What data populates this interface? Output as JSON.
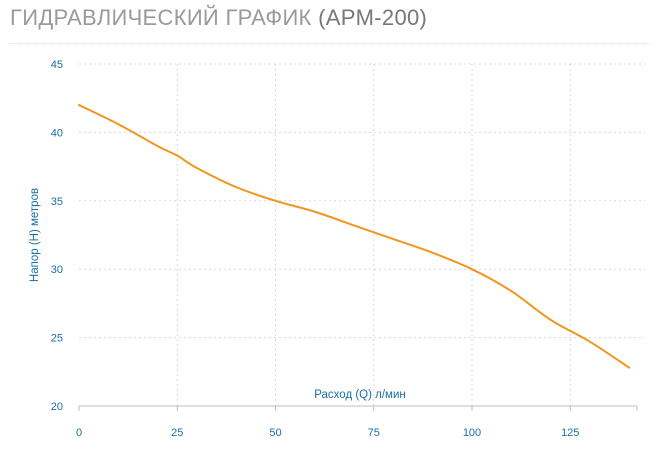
{
  "header": {
    "title_main": "ГИДРАВЛИЧЕСКИЙ ГРАФИК",
    "title_model": "(APM-200)"
  },
  "chart_data": {
    "type": "line",
    "xlabel": "Расход (Q) л/мин",
    "ylabel": "Напор (H) метров",
    "xlim": [
      0,
      140
    ],
    "ylim": [
      20,
      45
    ],
    "xticks": [
      0,
      25,
      50,
      75,
      100,
      125
    ],
    "yticks": [
      20,
      25,
      30,
      35,
      40,
      45
    ],
    "grid": true,
    "series": [
      {
        "color": "#f0961e",
        "x": [
          0,
          10,
          20,
          25,
          30,
          40,
          50,
          60,
          70,
          80,
          90,
          100,
          110,
          120,
          130,
          140
        ],
        "y": [
          42,
          40.6,
          39,
          38.3,
          37.4,
          36,
          35,
          34.2,
          33.2,
          32.2,
          31.2,
          30,
          28.4,
          26.3,
          24.7,
          22.8
        ]
      }
    ]
  },
  "colors": {
    "line": "#f0961e",
    "axis_text": "#1a6fa3",
    "grid": "#d8d8d8"
  }
}
